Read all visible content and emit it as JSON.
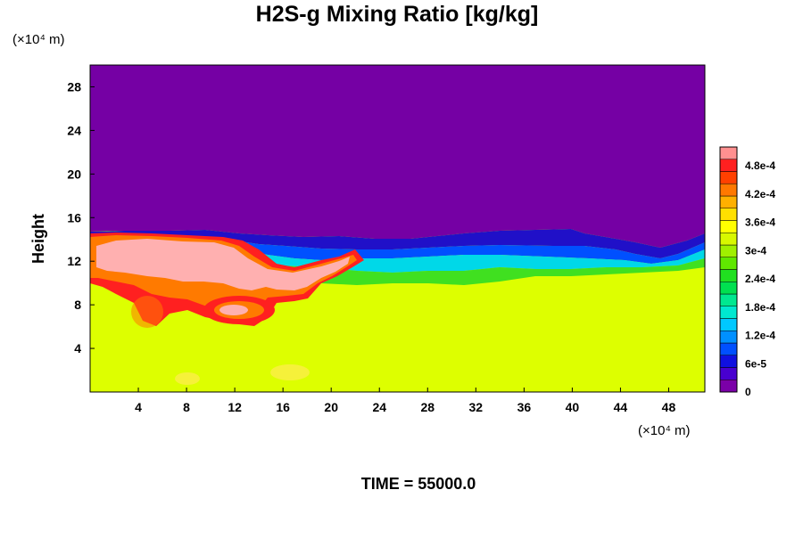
{
  "chart_data": {
    "type": "heatmap",
    "title": "H2S-g Mixing Ratio [kg/kg]",
    "ylabel": "Height",
    "xlabel": "",
    "y_unit": "(×10⁴ m)",
    "x_unit": "(×10⁴ m)",
    "time_label": "TIME = 55000.0",
    "xlim": [
      0,
      51
    ],
    "ylim": [
      0,
      30
    ],
    "x_ticks": [
      4,
      8,
      12,
      16,
      20,
      24,
      28,
      32,
      36,
      40,
      44,
      48
    ],
    "y_ticks": [
      4,
      8,
      12,
      16,
      20,
      24,
      28
    ],
    "colorbar": {
      "min": 0,
      "max": 0.00052,
      "labels": [
        "0",
        "6e-5",
        "1.2e-4",
        "1.8e-4",
        "2.4e-4",
        "3e-4",
        "3.6e-4",
        "4.2e-4",
        "4.8e-4"
      ],
      "label_values": [
        0,
        6e-05,
        0.00012,
        0.00018,
        0.00024,
        0.0003,
        0.00036,
        0.00042,
        0.00048
      ],
      "colors": [
        "#7b00a8",
        "#4800d0",
        "#1010e0",
        "#0050ff",
        "#0090ff",
        "#00c8ff",
        "#00e8d0",
        "#00e890",
        "#00e050",
        "#20e020",
        "#60e800",
        "#a0f000",
        "#d8f800",
        "#ffff00",
        "#ffe000",
        "#ffb000",
        "#ff7800",
        "#ff4000",
        "#ff2020",
        "#ff9090"
      ]
    },
    "regions": [
      {
        "level": "background_above",
        "value": 0,
        "color": "#7500a4"
      },
      {
        "level": "background_below",
        "value": 0.00033,
        "color": "#ddff00"
      },
      {
        "level": "peak_plume",
        "value": 0.0005,
        "color": "#ffb0b0"
      }
    ],
    "colors": {
      "upper": "#7500a4",
      "lower": "#ddff00",
      "plume": "#ffb0b0",
      "red": "#ff2020",
      "orange": "#ff7a00",
      "green": "#40e020",
      "cyan": "#00d8e8",
      "blue": "#0050ff",
      "darkblue": "#2010c8"
    }
  }
}
